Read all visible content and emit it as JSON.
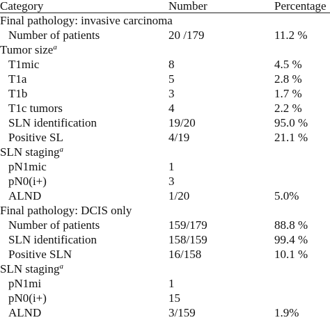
{
  "header": {
    "category": "Category",
    "number": "Number",
    "percentage": "Percentage"
  },
  "rows": [
    {
      "type": "section",
      "label": "Final pathology: invasive carcinoma",
      "number": "",
      "percentage": ""
    },
    {
      "type": "item",
      "label": "Number of patients",
      "number": "20 /179",
      "percentage": "11.2 %"
    },
    {
      "type": "group",
      "label": "Tumor size",
      "sup": "a",
      "number": "",
      "percentage": ""
    },
    {
      "type": "item",
      "label": "T1mic",
      "number": "8",
      "percentage": "4.5 %"
    },
    {
      "type": "item",
      "label": "T1a",
      "number": "5",
      "percentage": "2.8 %"
    },
    {
      "type": "item",
      "label": "T1b",
      "number": "3",
      "percentage": "1.7 %"
    },
    {
      "type": "item",
      "label": "T1c tumors",
      "number": "4",
      "percentage": "2.2 %"
    },
    {
      "type": "item",
      "label": "SLN identification",
      "number": "19/20",
      "percentage": "95.0 %"
    },
    {
      "type": "item",
      "label": "Positive SL",
      "number": "4/19",
      "percentage": "21.1 %"
    },
    {
      "type": "group",
      "label": "SLN staging",
      "sup": "a",
      "number": "",
      "percentage": ""
    },
    {
      "type": "item",
      "label": "pN1mic",
      "number": "1",
      "percentage": ""
    },
    {
      "type": "item",
      "label": "pN0(i+)",
      "number": "3",
      "percentage": ""
    },
    {
      "type": "item",
      "label": "ALND",
      "number": "1/20",
      "percentage": "5.0%"
    },
    {
      "type": "section",
      "label": "Final pathology: DCIS only",
      "number": "",
      "percentage": ""
    },
    {
      "type": "item",
      "label": "Number of patients",
      "number": "159/179",
      "percentage": "88.8 %"
    },
    {
      "type": "item",
      "label": "SLN identification",
      "number": "158/159",
      "percentage": "99.4 %"
    },
    {
      "type": "item",
      "label": "Positive SLN",
      "number": "16/158",
      "percentage": "10.1 %"
    },
    {
      "type": "group",
      "label": "SLN staging",
      "sup": "a",
      "number": "",
      "percentage": ""
    },
    {
      "type": "item",
      "label": "pN1mi",
      "number": "1",
      "percentage": ""
    },
    {
      "type": "item",
      "label": "pN0(i+)",
      "number": "15",
      "percentage": ""
    },
    {
      "type": "item",
      "label": "ALND",
      "number": "3/159",
      "percentage": "1.9%"
    }
  ]
}
